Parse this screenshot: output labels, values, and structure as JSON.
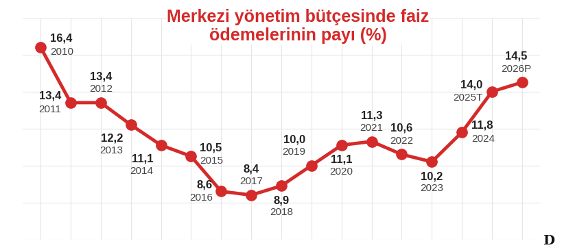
{
  "chart_data": {
    "type": "line",
    "title": "Merkezi yönetim bütçesinde faiz\nödemelerinin payı (%)",
    "logo": "D",
    "categories": [
      "2010",
      "2011",
      "2012",
      "2013",
      "2014",
      "2015",
      "2016",
      "2017",
      "2018",
      "2019",
      "2020",
      "2021",
      "2022",
      "2023",
      "2024",
      "2025T",
      "2026P"
    ],
    "values": [
      16.4,
      13.4,
      13.4,
      12.2,
      11.1,
      10.5,
      8.6,
      8.4,
      8.9,
      10.0,
      11.1,
      11.3,
      10.6,
      10.2,
      11.8,
      14.0,
      14.5
    ],
    "value_labels": [
      "16,4",
      "13,4",
      "13,4",
      "12,2",
      "11,1",
      "10,5",
      "8,6",
      "8,4",
      "8,9",
      "10,0",
      "11,1",
      "11,3",
      "10,6",
      "10,2",
      "11,8",
      "14,0",
      "14,5"
    ],
    "color": "#d42a2a",
    "marker": "o",
    "line_style": "solid",
    "ylim": [
      6,
      18
    ],
    "yticks": [
      6,
      8,
      10,
      12,
      14,
      16,
      18
    ],
    "grid": true,
    "data_labels": true,
    "tick_labels": false
  }
}
